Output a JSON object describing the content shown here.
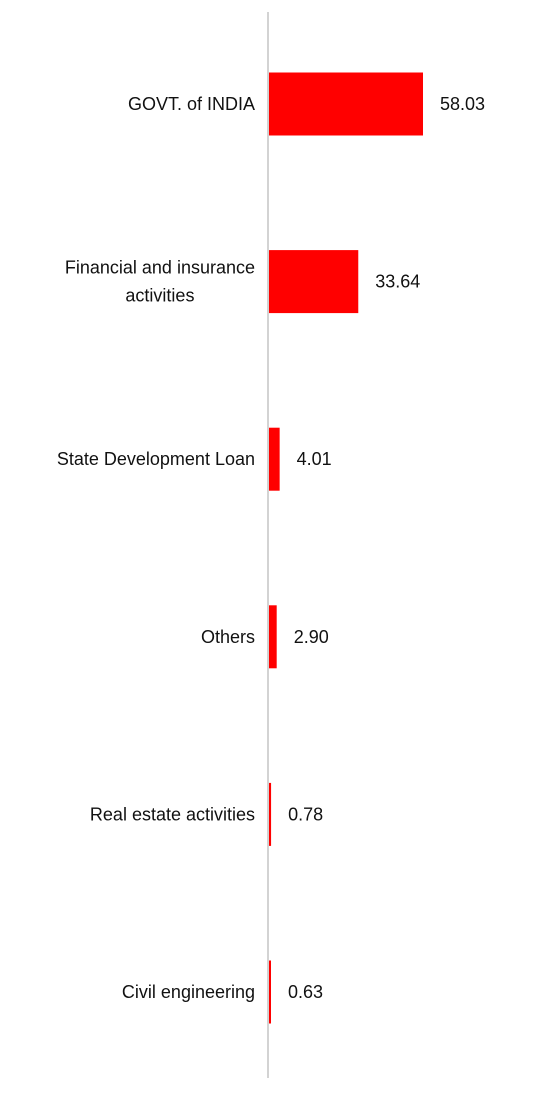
{
  "chart_data": {
    "type": "bar",
    "orientation": "horizontal",
    "categories": [
      "GOVT. of INDIA",
      "Financial and insurance activities",
      "State Development Loan",
      "Others",
      "Real estate activities",
      "Civil engineering"
    ],
    "category_label_lines": [
      [
        "GOVT. of INDIA"
      ],
      [
        "Financial and insurance",
        "activities"
      ],
      [
        "State Development Loan"
      ],
      [
        "Others"
      ],
      [
        "Real estate activities"
      ],
      [
        "Civil engineering"
      ]
    ],
    "values": [
      58.03,
      33.64,
      4.01,
      2.9,
      0.78,
      0.63
    ],
    "value_labels": [
      "58.03",
      "33.64",
      "4.01",
      "2.90",
      "0.78",
      "0.63"
    ],
    "xlim": [
      0,
      58.03
    ],
    "grid": false,
    "legend": "none",
    "bar_color": "#ff0000",
    "axis_color": "#d3d3d3"
  }
}
